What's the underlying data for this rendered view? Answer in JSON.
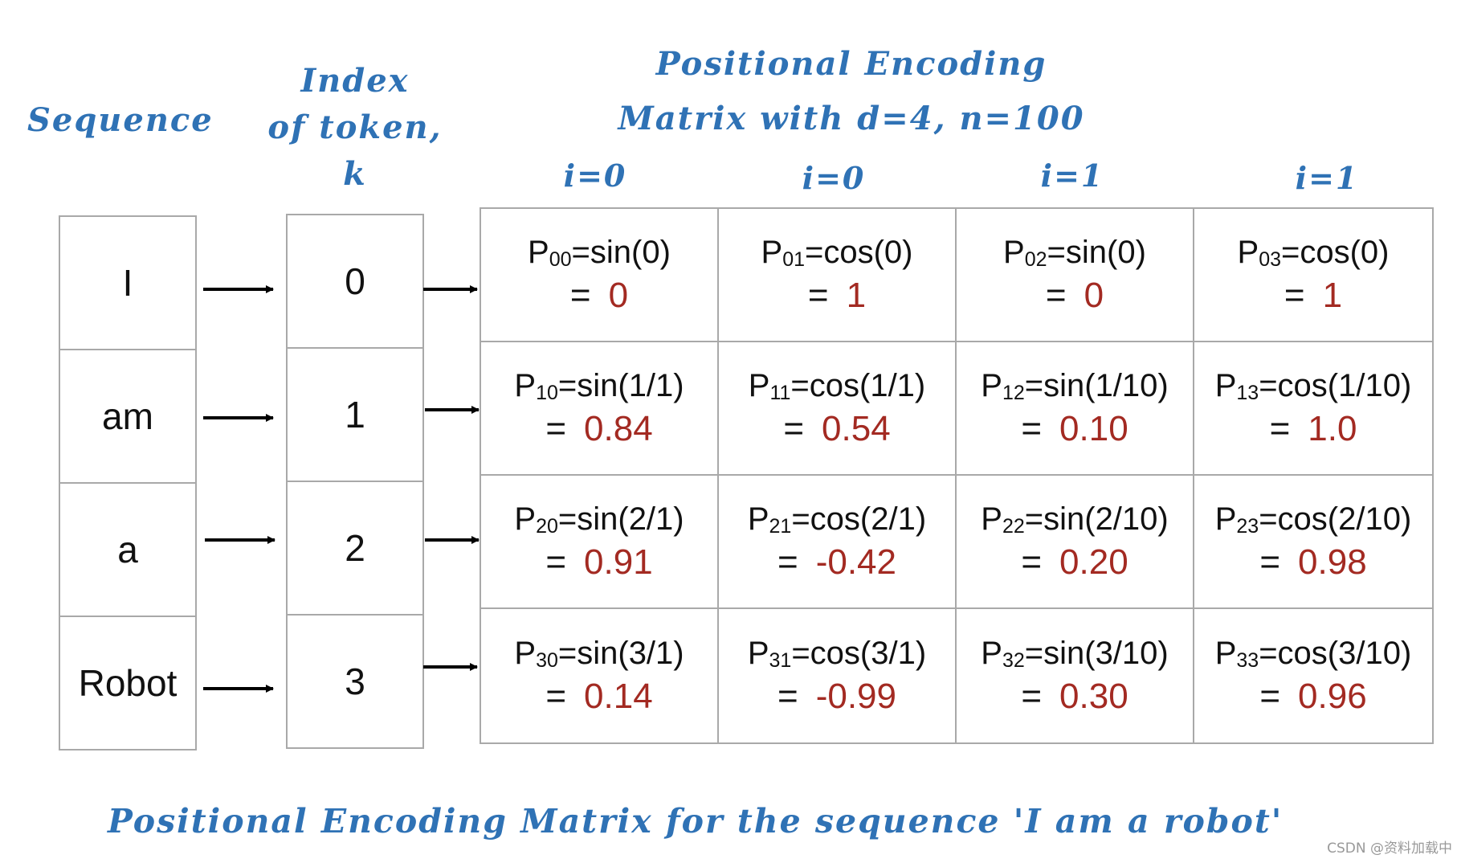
{
  "headers": {
    "sequence": "Sequence",
    "index_line1": "Index",
    "index_line2": "of token,",
    "index_line3": "k",
    "matrix_line1": "Positional Encoding",
    "matrix_line2": "Matrix with d=4, n=100"
  },
  "column_labels": [
    "i=0",
    "i=0",
    "i=1",
    "i=1"
  ],
  "tokens": [
    "I",
    "am",
    "a",
    "Robot"
  ],
  "indices": [
    "0",
    "1",
    "2",
    "3"
  ],
  "matrix": [
    [
      {
        "p": "P",
        "sub": "00",
        "expr": "=sin(0)",
        "eq": "=",
        "value": "0"
      },
      {
        "p": "P",
        "sub": "01",
        "expr": "=cos(0)",
        "eq": "=",
        "value": "1"
      },
      {
        "p": "P",
        "sub": "02",
        "expr": "=sin(0)",
        "eq": "=",
        "value": "0"
      },
      {
        "p": "P",
        "sub": "03",
        "expr": "=cos(0)",
        "eq": "=",
        "value": "1"
      }
    ],
    [
      {
        "p": "P",
        "sub": "10",
        "expr": "=sin(1/1)",
        "eq": "=",
        "value": "0.84"
      },
      {
        "p": "P",
        "sub": "11",
        "expr": "=cos(1/1)",
        "eq": "=",
        "value": "0.54"
      },
      {
        "p": "P",
        "sub": "12",
        "expr": "=sin(1/10)",
        "eq": "=",
        "value": "0.10"
      },
      {
        "p": "P",
        "sub": "13",
        "expr": "=cos(1/10)",
        "eq": "=",
        "value": "1.0"
      }
    ],
    [
      {
        "p": "P",
        "sub": "20",
        "expr": "=sin(2/1)",
        "eq": "=",
        "value": "0.91"
      },
      {
        "p": "P",
        "sub": "21",
        "expr": "=cos(2/1)",
        "eq": "=",
        "value": "-0.42"
      },
      {
        "p": "P",
        "sub": "22",
        "expr": "=sin(2/10)",
        "eq": "=",
        "value": "0.20"
      },
      {
        "p": "P",
        "sub": "23",
        "expr": "=cos(2/10)",
        "eq": "=",
        "value": "0.98"
      }
    ],
    [
      {
        "p": "P",
        "sub": "30",
        "expr": "=sin(3/1)",
        "eq": "=",
        "value": "0.14"
      },
      {
        "p": "P",
        "sub": "31",
        "expr": "=cos(3/1)",
        "eq": "=",
        "value": "-0.99"
      },
      {
        "p": "P",
        "sub": "32",
        "expr": "=sin(3/10)",
        "eq": "=",
        "value": "0.30"
      },
      {
        "p": "P",
        "sub": "33",
        "expr": "=cos(3/10)",
        "eq": "=",
        "value": "0.96"
      }
    ]
  ],
  "caption": "Positional Encoding Matrix for the sequence 'I am a robot'",
  "watermark": "CSDN @资料加载中",
  "colors": {
    "handwriting": "#2f72b5",
    "value": "#a32a22",
    "border": "#a9a9a9"
  }
}
